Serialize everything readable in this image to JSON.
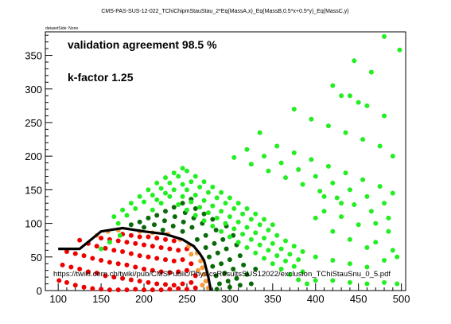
{
  "chart_data": {
    "type": "scatter",
    "title": "CMS-PAS-SUS-12-022_TChiChipmStauStau_2*Eq(MassA,x)_Eq(MassB,0.5*x+0.5*y)_Eq(MassC,y)",
    "dataset_label": "datasetSide: None",
    "xlabel": "",
    "ylabel": "",
    "xlim": [
      85,
      505
    ],
    "ylim": [
      0,
      385
    ],
    "x_ticks": [
      100,
      150,
      200,
      250,
      300,
      350,
      400,
      450,
      500
    ],
    "y_ticks": [
      0,
      50,
      100,
      150,
      200,
      250,
      300,
      350
    ],
    "grid": false,
    "annotations": {
      "agreement": "validation agreement 98.5 %",
      "kfactor": "k-factor 1.25",
      "url": "https://twiki.cern.ch/twiki/pub/CMSPublic/PhysicsResultsSUS12022/exclusion_TChiStauSnu_0_5.pdf"
    },
    "colors": {
      "red": "#ee0000",
      "orange": "#f59a3c",
      "darkgreen": "#0a6a0a",
      "green": "#22ee22",
      "line": "#000000"
    },
    "series": [
      {
        "color": "red",
        "points": [
          [
            101,
            15
          ],
          [
            110,
            12
          ],
          [
            120,
            8
          ],
          [
            130,
            5
          ],
          [
            140,
            3
          ],
          [
            150,
            2
          ],
          [
            160,
            1
          ],
          [
            170,
            1
          ],
          [
            180,
            1
          ],
          [
            190,
            2
          ],
          [
            200,
            1
          ],
          [
            210,
            1
          ],
          [
            220,
            1
          ],
          [
            230,
            2
          ],
          [
            240,
            3
          ],
          [
            250,
            2
          ],
          [
            260,
            4
          ],
          [
            105,
            38
          ],
          [
            115,
            35
          ],
          [
            125,
            32
          ],
          [
            135,
            28
          ],
          [
            145,
            26
          ],
          [
            155,
            22
          ],
          [
            165,
            20
          ],
          [
            175,
            18
          ],
          [
            185,
            16
          ],
          [
            195,
            14
          ],
          [
            205,
            12
          ],
          [
            215,
            10
          ],
          [
            225,
            9
          ],
          [
            235,
            8
          ],
          [
            245,
            10
          ],
          [
            255,
            12
          ],
          [
            110,
            58
          ],
          [
            120,
            55
          ],
          [
            130,
            52
          ],
          [
            140,
            48
          ],
          [
            150,
            45
          ],
          [
            160,
            42
          ],
          [
            170,
            40
          ],
          [
            180,
            38
          ],
          [
            190,
            35
          ],
          [
            200,
            32
          ],
          [
            210,
            30
          ],
          [
            220,
            28
          ],
          [
            230,
            27
          ],
          [
            240,
            28
          ],
          [
            250,
            30
          ],
          [
            260,
            22
          ],
          [
            125,
            75
          ],
          [
            135,
            70
          ],
          [
            145,
            66
          ],
          [
            155,
            63
          ],
          [
            165,
            60
          ],
          [
            175,
            58
          ],
          [
            185,
            55
          ],
          [
            195,
            52
          ],
          [
            205,
            50
          ],
          [
            215,
            48
          ],
          [
            225,
            46
          ],
          [
            235,
            44
          ],
          [
            245,
            46
          ],
          [
            255,
            40
          ],
          [
            150,
            78
          ],
          [
            160,
            76
          ],
          [
            170,
            74
          ],
          [
            180,
            72
          ],
          [
            190,
            70
          ],
          [
            200,
            68
          ],
          [
            210,
            66
          ],
          [
            220,
            64
          ],
          [
            230,
            62
          ],
          [
            240,
            60
          ],
          [
            250,
            62
          ],
          [
            175,
            84
          ],
          [
            185,
            82
          ],
          [
            195,
            80
          ],
          [
            205,
            80
          ],
          [
            215,
            78
          ],
          [
            225,
            76
          ],
          [
            235,
            74
          ]
        ]
      },
      {
        "color": "orange",
        "points": [
          [
            145,
            82
          ],
          [
            158,
            88
          ],
          [
            170,
            90
          ],
          [
            195,
            88
          ],
          [
            210,
            86
          ],
          [
            228,
            84
          ],
          [
            242,
            76
          ],
          [
            252,
            66
          ],
          [
            262,
            56
          ],
          [
            266,
            44
          ],
          [
            268,
            34
          ],
          [
            270,
            24
          ],
          [
            272,
            14
          ],
          [
            275,
            4
          ],
          [
            255,
            54
          ],
          [
            263,
            30
          ],
          [
            268,
            8
          ]
        ]
      },
      {
        "color": "darkgreen",
        "points": [
          [
            185,
            98
          ],
          [
            195,
            102
          ],
          [
            205,
            108
          ],
          [
            215,
            112
          ],
          [
            225,
            118
          ],
          [
            235,
            124
          ],
          [
            245,
            130
          ],
          [
            255,
            136
          ],
          [
            200,
            94
          ],
          [
            212,
            98
          ],
          [
            224,
            104
          ],
          [
            236,
            110
          ],
          [
            248,
            116
          ],
          [
            260,
            122
          ],
          [
            222,
            90
          ],
          [
            234,
            96
          ],
          [
            246,
            102
          ],
          [
            258,
            108
          ],
          [
            270,
            114
          ],
          [
            245,
            88
          ],
          [
            256,
            94
          ],
          [
            268,
            100
          ],
          [
            280,
            106
          ],
          [
            262,
            76
          ],
          [
            272,
            82
          ],
          [
            284,
            90
          ],
          [
            296,
            96
          ],
          [
            272,
            64
          ],
          [
            282,
            70
          ],
          [
            292,
            76
          ],
          [
            304,
            82
          ],
          [
            276,
            50
          ],
          [
            286,
            56
          ],
          [
            296,
            62
          ],
          [
            308,
            68
          ],
          [
            280,
            36
          ],
          [
            290,
            40
          ],
          [
            300,
            46
          ],
          [
            312,
            52
          ],
          [
            284,
            22
          ],
          [
            294,
            26
          ],
          [
            304,
            32
          ],
          [
            316,
            38
          ],
          [
            288,
            10
          ],
          [
            298,
            14
          ],
          [
            308,
            18
          ],
          [
            320,
            24
          ],
          [
            285,
            2
          ],
          [
            300,
            5
          ],
          [
            312,
            8
          ],
          [
            325,
            10
          ],
          [
            330,
            32
          ]
        ]
      },
      {
        "color": "green",
        "points": [
          [
            150,
            62
          ],
          [
            160,
            72
          ],
          [
            172,
            82
          ],
          [
            165,
            110
          ],
          [
            175,
            120
          ],
          [
            185,
            130
          ],
          [
            195,
            140
          ],
          [
            205,
            150
          ],
          [
            215,
            160
          ],
          [
            225,
            168
          ],
          [
            235,
            175
          ],
          [
            245,
            182
          ],
          [
            170,
            100
          ],
          [
            180,
            112
          ],
          [
            190,
            122
          ],
          [
            200,
            132
          ],
          [
            210,
            142
          ],
          [
            220,
            152
          ],
          [
            230,
            160
          ],
          [
            240,
            170
          ],
          [
            250,
            178
          ],
          [
            260,
            170
          ],
          [
            270,
            162
          ],
          [
            280,
            154
          ],
          [
            290,
            146
          ],
          [
            300,
            138
          ],
          [
            310,
            130
          ],
          [
            320,
            122
          ],
          [
            330,
            114
          ],
          [
            340,
            106
          ],
          [
            350,
            98
          ],
          [
            255,
            162
          ],
          [
            265,
            154
          ],
          [
            275,
            146
          ],
          [
            285,
            138
          ],
          [
            295,
            130
          ],
          [
            305,
            122
          ],
          [
            315,
            114
          ],
          [
            325,
            106
          ],
          [
            335,
            98
          ],
          [
            345,
            90
          ],
          [
            355,
            82
          ],
          [
            365,
            74
          ],
          [
            375,
            66
          ],
          [
            385,
            58
          ],
          [
            250,
            150
          ],
          [
            260,
            142
          ],
          [
            270,
            134
          ],
          [
            280,
            126
          ],
          [
            290,
            118
          ],
          [
            300,
            110
          ],
          [
            310,
            102
          ],
          [
            320,
            94
          ],
          [
            330,
            86
          ],
          [
            340,
            78
          ],
          [
            350,
            70
          ],
          [
            360,
            62
          ],
          [
            370,
            54
          ],
          [
            380,
            46
          ],
          [
            245,
            140
          ],
          [
            255,
            132
          ],
          [
            265,
            124
          ],
          [
            275,
            116
          ],
          [
            285,
            108
          ],
          [
            295,
            100
          ],
          [
            305,
            92
          ],
          [
            315,
            84
          ],
          [
            325,
            76
          ],
          [
            335,
            68
          ],
          [
            345,
            60
          ],
          [
            355,
            52
          ],
          [
            365,
            44
          ],
          [
            375,
            36
          ],
          [
            385,
            28
          ],
          [
            240,
            128
          ],
          [
            250,
            120
          ],
          [
            260,
            112
          ],
          [
            270,
            104
          ],
          [
            280,
            96
          ],
          [
            290,
            88
          ],
          [
            300,
            80
          ],
          [
            310,
            72
          ],
          [
            320,
            64
          ],
          [
            330,
            56
          ],
          [
            340,
            48
          ],
          [
            350,
            40
          ],
          [
            360,
            32
          ],
          [
            370,
            24
          ],
          [
            380,
            16
          ],
          [
            390,
            10
          ],
          [
            230,
            140
          ],
          [
            220,
            130
          ],
          [
            210,
            120
          ],
          [
            235,
            150
          ],
          [
            245,
            158
          ],
          [
            225,
            145
          ],
          [
            215,
            135
          ],
          [
            305,
            198
          ],
          [
            325,
            188
          ],
          [
            345,
            178
          ],
          [
            365,
            168
          ],
          [
            385,
            158
          ],
          [
            405,
            148
          ],
          [
            425,
            138
          ],
          [
            445,
            128
          ],
          [
            465,
            118
          ],
          [
            485,
            108
          ],
          [
            320,
            210
          ],
          [
            340,
            200
          ],
          [
            360,
            190
          ],
          [
            380,
            180
          ],
          [
            400,
            170
          ],
          [
            420,
            160
          ],
          [
            440,
            150
          ],
          [
            460,
            140
          ],
          [
            480,
            130
          ],
          [
            335,
            235
          ],
          [
            355,
            215
          ],
          [
            375,
            205
          ],
          [
            395,
            195
          ],
          [
            415,
            185
          ],
          [
            435,
            175
          ],
          [
            455,
            165
          ],
          [
            475,
            155
          ],
          [
            490,
            145
          ],
          [
            375,
            270
          ],
          [
            395,
            255
          ],
          [
            415,
            245
          ],
          [
            435,
            235
          ],
          [
            455,
            225
          ],
          [
            475,
            215
          ],
          [
            490,
            200
          ],
          [
            420,
            305
          ],
          [
            440,
            290
          ],
          [
            460,
            275
          ],
          [
            480,
            260
          ],
          [
            430,
            290
          ],
          [
            450,
            280
          ],
          [
            445,
            342
          ],
          [
            465,
            325
          ],
          [
            480,
            378
          ],
          [
            498,
            358
          ],
          [
            400,
            15
          ],
          [
            420,
            15
          ],
          [
            440,
            12
          ],
          [
            460,
            10
          ],
          [
            480,
            12
          ],
          [
            495,
            10
          ],
          [
            400,
            50
          ],
          [
            420,
            45
          ],
          [
            440,
            40
          ],
          [
            460,
            35
          ],
          [
            480,
            45
          ],
          [
            495,
            50
          ],
          [
            485,
            88
          ],
          [
            470,
            100
          ],
          [
            420,
            88
          ],
          [
            440,
            76
          ],
          [
            460,
            64
          ],
          [
            400,
            108
          ],
          [
            410,
            118
          ],
          [
            430,
            110
          ],
          [
            450,
            98
          ],
          [
            470,
            72
          ],
          [
            490,
            60
          ],
          [
            410,
            140
          ],
          [
            430,
            130
          ]
        ]
      }
    ],
    "exclusion_line": [
      [
        100,
        62
      ],
      [
        125,
        62
      ],
      [
        150,
        88
      ],
      [
        175,
        93
      ],
      [
        200,
        88
      ],
      [
        225,
        84
      ],
      [
        245,
        76
      ],
      [
        258,
        66
      ],
      [
        265,
        55
      ],
      [
        270,
        45
      ],
      [
        272,
        35
      ],
      [
        275,
        20
      ],
      [
        278,
        0
      ]
    ]
  }
}
